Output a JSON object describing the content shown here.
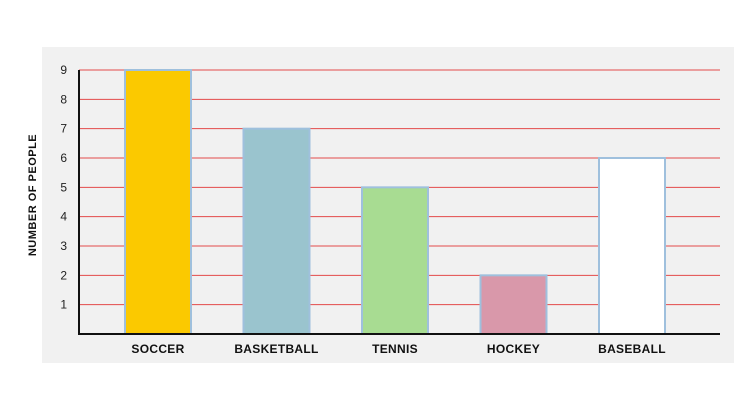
{
  "chart_data": {
    "type": "bar",
    "title": "",
    "xlabel": "",
    "ylabel": "NUMBER OF PEOPLE",
    "categories": [
      "SOCCER",
      "BASKETBALL",
      "TENNIS",
      "HOCKEY",
      "BASEBALL"
    ],
    "values": [
      9,
      7,
      5,
      2,
      6
    ],
    "bar_colors": [
      "#fbc900",
      "#9ac4ce",
      "#a8dc92",
      "#d998aa",
      "#ffffff"
    ],
    "bar_border_color": "#9fc0dd",
    "ylim": [
      0,
      9
    ],
    "yticks": [
      1,
      2,
      3,
      4,
      5,
      6,
      7,
      8,
      9
    ],
    "grid": true,
    "grid_color": "#e34a4a",
    "legend": "none"
  }
}
